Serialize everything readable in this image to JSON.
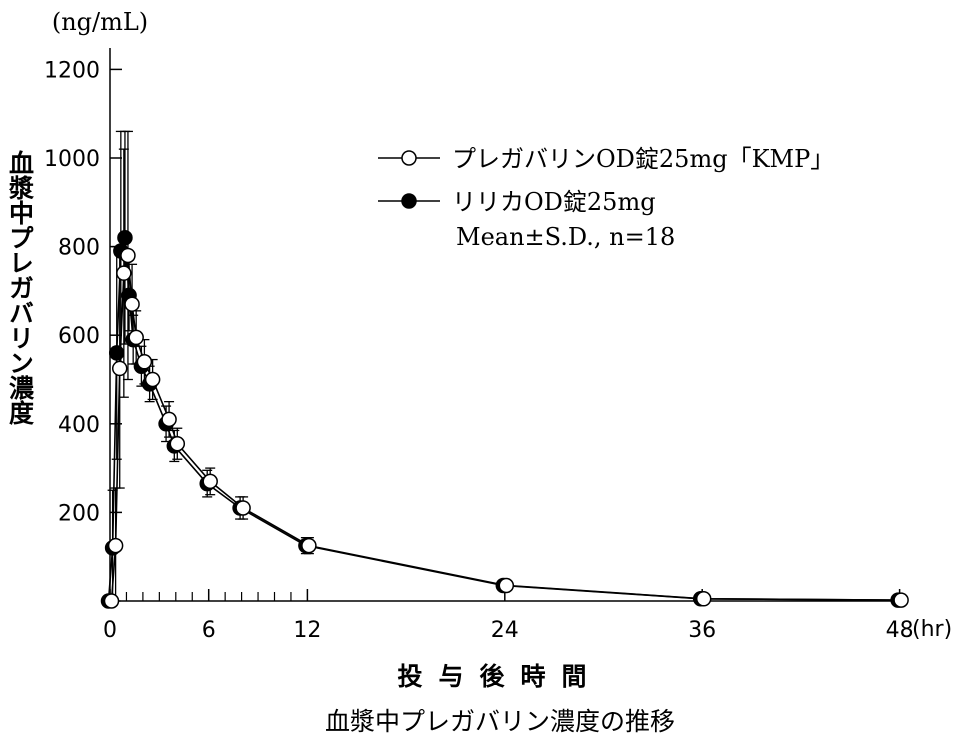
{
  "chart_data": {
    "type": "line",
    "title": "血漿中プレガバリン濃度の推移",
    "xlabel": "投与後時間",
    "x_unit": "(hr)",
    "ylabel": "血漿中プレガバリン濃度",
    "y_unit": "(ng/mL)",
    "xlim": [
      0,
      48
    ],
    "ylim": [
      0,
      1200
    ],
    "x_ticks": [
      0,
      6,
      12,
      24,
      36,
      48
    ],
    "x_minor_ticks": [
      1,
      2,
      3,
      4,
      5,
      7,
      8,
      9,
      10,
      11
    ],
    "y_ticks": [
      200,
      400,
      600,
      800,
      1000,
      1200
    ],
    "grid": false,
    "legend_position": "top-right",
    "legend_note": "Mean±S.D., n=18",
    "series": [
      {
        "name": "プレガバリンOD錠25mg「KMP」",
        "marker": "open-circle",
        "color": "#000000",
        "x": [
          0,
          0.25,
          0.5,
          0.75,
          1,
          1.25,
          1.5,
          2,
          2.5,
          3.5,
          4,
          6,
          8,
          12,
          24,
          36,
          48
        ],
        "y": [
          0,
          125,
          525,
          740,
          780,
          670,
          595,
          540,
          500,
          410,
          355,
          270,
          210,
          125,
          35,
          5,
          2
        ],
        "sd": [
          0,
          130,
          270,
          280,
          280,
          90,
          60,
          50,
          45,
          40,
          35,
          30,
          25,
          18,
          8,
          3,
          2
        ]
      },
      {
        "name": "リリカOD錠25mg",
        "marker": "filled-circle",
        "color": "#000000",
        "x": [
          0,
          0.25,
          0.5,
          0.75,
          1,
          1.25,
          1.5,
          2,
          2.5,
          3.5,
          4,
          6,
          8,
          12,
          24,
          36,
          48
        ],
        "y": [
          0,
          120,
          560,
          790,
          820,
          690,
          590,
          530,
          490,
          400,
          350,
          265,
          210,
          125,
          35,
          5,
          2
        ],
        "sd": [
          0,
          130,
          240,
          270,
          240,
          80,
          55,
          45,
          40,
          40,
          35,
          30,
          25,
          18,
          8,
          3,
          2
        ]
      }
    ]
  }
}
